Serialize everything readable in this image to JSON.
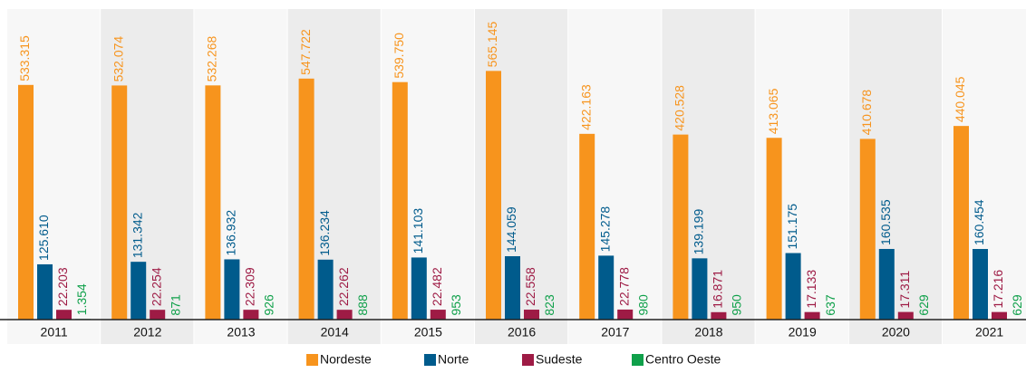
{
  "chart_data": {
    "type": "bar",
    "categories": [
      "2011",
      "2012",
      "2013",
      "2014",
      "2015",
      "2016",
      "2017",
      "2018",
      "2019",
      "2020",
      "2021"
    ],
    "series": [
      {
        "name": "Nordeste",
        "color": "#f7941d",
        "values": [
          533315,
          532074,
          532268,
          547722,
          539750,
          565145,
          422163,
          420528,
          413065,
          410678,
          440045
        ],
        "value_labels": [
          "533.315",
          "532.074",
          "532.268",
          "547.722",
          "539.750",
          "565.145",
          "422.163",
          "420.528",
          "413.065",
          "410.678",
          "440.045"
        ]
      },
      {
        "name": "Norte",
        "color": "#005b8c",
        "values": [
          125610,
          131342,
          136932,
          136234,
          141103,
          144059,
          145278,
          139199,
          151175,
          160535,
          160454
        ],
        "value_labels": [
          "125.610",
          "131.342",
          "136.932",
          "136.234",
          "141.103",
          "144.059",
          "145.278",
          "139.199",
          "151.175",
          "160.535",
          "160.454"
        ]
      },
      {
        "name": "Sudeste",
        "color": "#9e1b45",
        "values": [
          22203,
          22254,
          22309,
          22262,
          22482,
          22558,
          22778,
          16871,
          17133,
          17311,
          17216
        ],
        "value_labels": [
          "22.203",
          "22.254",
          "22.309",
          "22.262",
          "22.482",
          "22.558",
          "22.778",
          "16.871",
          "17.133",
          "17.311",
          "17.216"
        ]
      },
      {
        "name": "Centro Oeste",
        "color": "#0fa04a",
        "values": [
          1354,
          871,
          926,
          888,
          953,
          823,
          980,
          950,
          637,
          629,
          629
        ],
        "value_labels": [
          "1.354",
          "871",
          "926",
          "888",
          "953",
          "823",
          "980",
          "950",
          "637",
          "629",
          "629"
        ]
      }
    ]
  }
}
